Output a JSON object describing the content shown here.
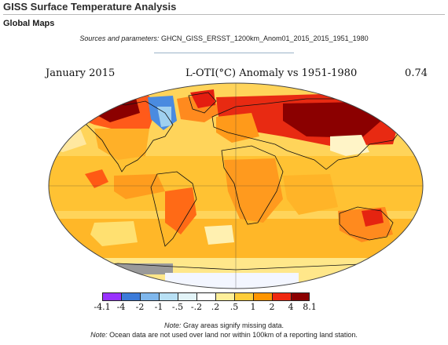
{
  "header": {
    "title": "GISS Surface Temperature Analysis",
    "subtitle": "Global Maps"
  },
  "sources": {
    "label": "Sources and parameters:",
    "value": "GHCN_GISS_ERSST_1200km_Anom01_2015_2015_1951_1980"
  },
  "map": {
    "month": "January 2015",
    "variable": "L-OTI(°C) Anomaly vs 1951-1980",
    "global_mean": "0.74"
  },
  "legend": {
    "ticks": [
      "-4.1",
      "-4",
      "-2",
      "-1",
      "-.5",
      "-.2",
      ".2",
      ".5",
      "1",
      "2",
      "4",
      "8.1"
    ],
    "colors": [
      "#9932ff",
      "#3c7bd9",
      "#7fb7ec",
      "#b8e0f4",
      "#e3f4f8",
      "#ffffff",
      "#ffef9a",
      "#ffcd3a",
      "#ff9500",
      "#f02810",
      "#8b0000"
    ]
  },
  "colors": {
    "missing": "#9a9a9a",
    "ocean_base": "#ffd45a"
  },
  "notes": {
    "note1_label": "Note:",
    "note1_text": "Gray areas signify missing data.",
    "note2_label": "Note:",
    "note2_text": "Ocean data are not used over land nor within 100km of a reporting land station."
  }
}
